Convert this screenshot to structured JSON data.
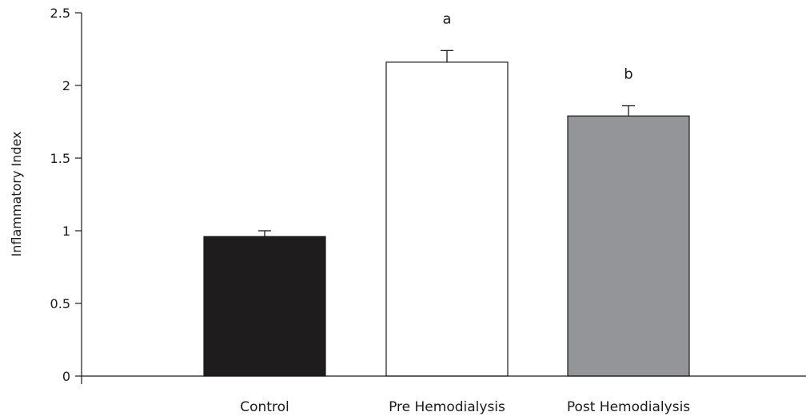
{
  "chart_data": {
    "type": "bar",
    "title": "",
    "xlabel": "",
    "ylabel": "Inflammatory Index",
    "categories": [
      "Control",
      "Pre Hemodialysis",
      "Post Hemodialysis"
    ],
    "values": [
      0.96,
      2.16,
      1.79
    ],
    "error_bars": [
      0.04,
      0.08,
      0.07
    ],
    "annotations": [
      "",
      "a",
      "b"
    ],
    "bar_colors": [
      "#1f1c1d",
      "#ffffff",
      "#939598"
    ],
    "bar_edge_color": "#1a1a1a",
    "ylim": [
      0,
      2.5
    ],
    "yticks": [
      0,
      0.5,
      1,
      1.5,
      2,
      2.5
    ],
    "ytick_labels": [
      "0",
      "0.5",
      "1",
      "1.5",
      "2",
      "2.5"
    ],
    "grid": false,
    "legend": "none"
  }
}
